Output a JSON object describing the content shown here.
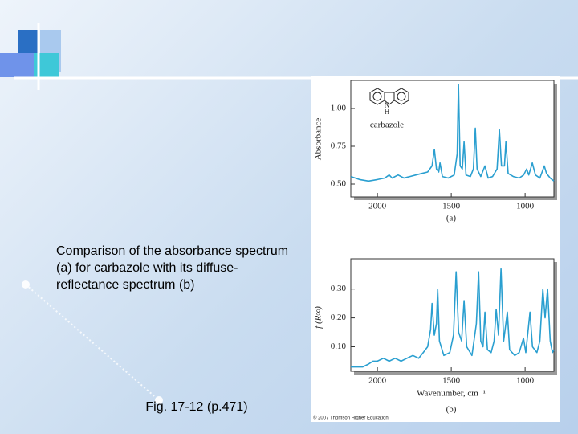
{
  "slide": {
    "caption": "Comparison of the absorbance spectrum (a) for carbazole with its diffuse-reflectance spectrum (b)",
    "figure_ref": "Fig. 17-12 (p.471)",
    "copyright": "© 2007 Thomson Higher Education"
  },
  "chart_data": [
    {
      "type": "line",
      "panel_label": "(a)",
      "ylabel": "Absorbance",
      "annotation": "carbazole",
      "structure_labels": [
        "N",
        "H"
      ],
      "xlim": [
        2180,
        805
      ],
      "xticks": [
        2000,
        1500,
        1000
      ],
      "ylim": [
        0.415,
        1.186
      ],
      "yticks": [
        {
          "value": 1,
          "label": "1.00"
        },
        {
          "value": 0.75,
          "label": "0.75"
        },
        {
          "value": 0.5,
          "label": "0.50"
        }
      ],
      "x": [
        2180,
        2120,
        2060,
        2000,
        1950,
        1920,
        1900,
        1860,
        1820,
        1780,
        1740,
        1700,
        1660,
        1630,
        1614,
        1600,
        1585,
        1576,
        1560,
        1520,
        1480,
        1460,
        1451,
        1440,
        1425,
        1413,
        1400,
        1370,
        1350,
        1337,
        1325,
        1300,
        1272,
        1250,
        1220,
        1190,
        1174,
        1160,
        1140,
        1130,
        1115,
        1080,
        1040,
        1010,
        989,
        975,
        951,
        930,
        900,
        885,
        870,
        855,
        830,
        805
      ],
      "series": [
        {
          "color": "#2a9fd0",
          "values": [
            0.55,
            0.53,
            0.52,
            0.53,
            0.54,
            0.56,
            0.54,
            0.56,
            0.54,
            0.55,
            0.56,
            0.57,
            0.58,
            0.62,
            0.73,
            0.6,
            0.58,
            0.64,
            0.55,
            0.54,
            0.56,
            0.7,
            1.16,
            0.62,
            0.6,
            0.78,
            0.56,
            0.55,
            0.6,
            0.87,
            0.6,
            0.55,
            0.62,
            0.54,
            0.55,
            0.6,
            0.86,
            0.62,
            0.62,
            0.78,
            0.57,
            0.55,
            0.54,
            0.56,
            0.6,
            0.56,
            0.64,
            0.56,
            0.54,
            0.58,
            0.62,
            0.57,
            0.54,
            0.52
          ]
        }
      ]
    },
    {
      "type": "line",
      "panel_label": "(b)",
      "ylabel": "f (R∞)",
      "xlabel": "Wavenumber, cm⁻¹",
      "xlim": [
        2180,
        805
      ],
      "xticks": [
        2000,
        1500,
        1000
      ],
      "ylim": [
        0.015,
        0.405
      ],
      "yticks": [
        {
          "value": 0.3,
          "label": "0.30"
        },
        {
          "value": 0.2,
          "label": "0.20"
        },
        {
          "value": 0.1,
          "label": "0.10"
        }
      ],
      "x": [
        2180,
        2100,
        2060,
        2030,
        2000,
        1960,
        1920,
        1880,
        1840,
        1800,
        1760,
        1720,
        1690,
        1660,
        1640,
        1630,
        1615,
        1600,
        1592,
        1580,
        1550,
        1510,
        1485,
        1467,
        1450,
        1430,
        1413,
        1395,
        1360,
        1330,
        1315,
        1300,
        1285,
        1272,
        1255,
        1230,
        1210,
        1196,
        1180,
        1163,
        1145,
        1120,
        1105,
        1070,
        1040,
        1011,
        995,
        967,
        950,
        920,
        900,
        880,
        865,
        848,
        830,
        815,
        805
      ],
      "series": [
        {
          "color": "#2a9fd0",
          "values": [
            0.03,
            0.03,
            0.04,
            0.05,
            0.05,
            0.06,
            0.05,
            0.06,
            0.05,
            0.06,
            0.07,
            0.06,
            0.08,
            0.1,
            0.16,
            0.25,
            0.14,
            0.18,
            0.3,
            0.12,
            0.07,
            0.08,
            0.14,
            0.36,
            0.15,
            0.12,
            0.26,
            0.1,
            0.07,
            0.18,
            0.36,
            0.12,
            0.1,
            0.22,
            0.09,
            0.08,
            0.12,
            0.23,
            0.14,
            0.37,
            0.12,
            0.22,
            0.09,
            0.07,
            0.08,
            0.13,
            0.08,
            0.22,
            0.1,
            0.08,
            0.12,
            0.3,
            0.2,
            0.3,
            0.12,
            0.08,
            0.09
          ]
        }
      ]
    }
  ]
}
